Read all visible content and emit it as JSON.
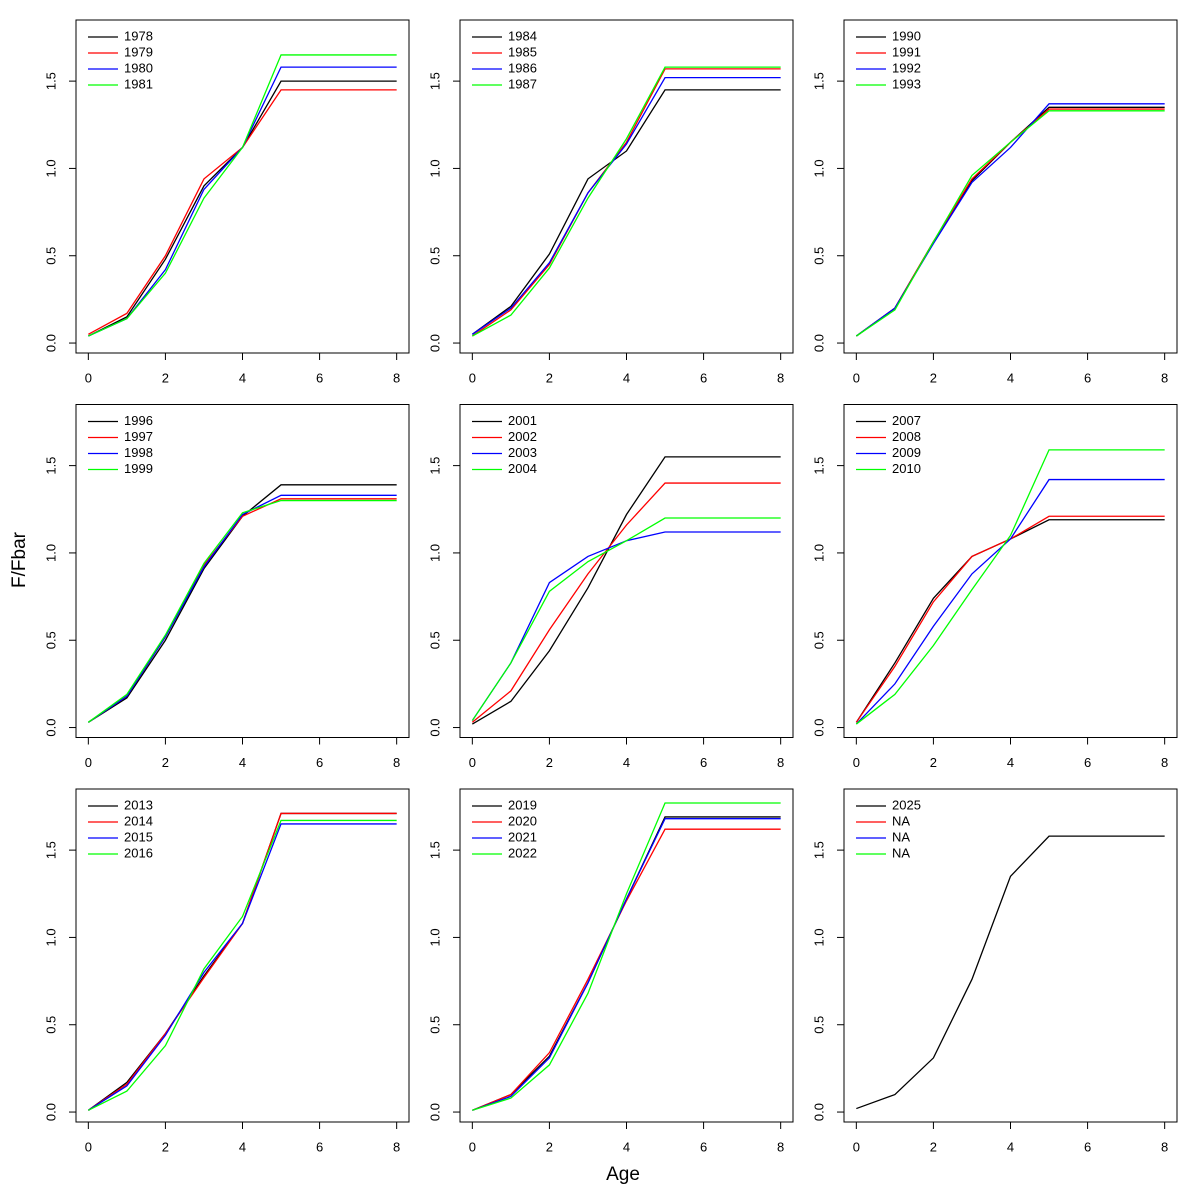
{
  "xlabel": "Age",
  "ylabel": "F/Fbar",
  "chart_data": [
    {
      "type": "line",
      "x": [
        0,
        1,
        2,
        3,
        4,
        5,
        6,
        7,
        8
      ],
      "xlim": [
        -0.32,
        8.32
      ],
      "ylim": [
        -0.057,
        1.85
      ],
      "xticks": [
        0,
        2,
        4,
        6,
        8
      ],
      "yticks": [
        {
          "value": 0,
          "label": "0.0"
        },
        0.5,
        {
          "value": 1,
          "label": "1.0"
        },
        1.5
      ],
      "series": [
        {
          "name": "1978",
          "color": "#000000",
          "values": [
            0.04,
            0.15,
            0.48,
            0.9,
            1.12,
            1.5,
            1.5,
            1.5,
            1.5
          ]
        },
        {
          "name": "1979",
          "color": "#ff0000",
          "values": [
            0.05,
            0.17,
            0.5,
            0.94,
            1.12,
            1.45,
            1.45,
            1.45,
            1.45
          ]
        },
        {
          "name": "1980",
          "color": "#0000ff",
          "values": [
            0.04,
            0.14,
            0.42,
            0.88,
            1.12,
            1.58,
            1.58,
            1.58,
            1.58
          ]
        },
        {
          "name": "1981",
          "color": "#00ff00",
          "values": [
            0.04,
            0.14,
            0.4,
            0.83,
            1.12,
            1.65,
            1.65,
            1.65,
            1.65
          ]
        }
      ]
    },
    {
      "type": "line",
      "x": [
        0,
        1,
        2,
        3,
        4,
        5,
        6,
        7,
        8
      ],
      "xlim": [
        -0.32,
        8.32
      ],
      "ylim": [
        -0.057,
        1.85
      ],
      "xticks": [
        0,
        2,
        4,
        6,
        8
      ],
      "yticks": [
        {
          "value": 0,
          "label": "0.0"
        },
        0.5,
        {
          "value": 1,
          "label": "1.0"
        },
        1.5
      ],
      "series": [
        {
          "name": "1984",
          "color": "#000000",
          "values": [
            0.05,
            0.21,
            0.51,
            0.94,
            1.1,
            1.45,
            1.45,
            1.45,
            1.45
          ]
        },
        {
          "name": "1985",
          "color": "#ff0000",
          "values": [
            0.04,
            0.19,
            0.45,
            0.86,
            1.15,
            1.57,
            1.57,
            1.57,
            1.57
          ]
        },
        {
          "name": "1986",
          "color": "#0000ff",
          "values": [
            0.05,
            0.2,
            0.46,
            0.86,
            1.14,
            1.52,
            1.52,
            1.52,
            1.52
          ]
        },
        {
          "name": "1987",
          "color": "#00ff00",
          "values": [
            0.04,
            0.16,
            0.43,
            0.83,
            1.17,
            1.58,
            1.58,
            1.58,
            1.58
          ]
        }
      ]
    },
    {
      "type": "line",
      "x": [
        0,
        1,
        2,
        3,
        4,
        5,
        6,
        7,
        8
      ],
      "xlim": [
        -0.32,
        8.32
      ],
      "ylim": [
        -0.057,
        1.85
      ],
      "xticks": [
        0,
        2,
        4,
        6,
        8
      ],
      "yticks": [
        {
          "value": 0,
          "label": "0.0"
        },
        0.5,
        {
          "value": 1,
          "label": "1.0"
        },
        1.5
      ],
      "series": [
        {
          "name": "1990",
          "color": "#000000",
          "values": [
            0.04,
            0.2,
            0.58,
            0.93,
            1.15,
            1.35,
            1.35,
            1.35,
            1.35
          ]
        },
        {
          "name": "1991",
          "color": "#ff0000",
          "values": [
            0.04,
            0.2,
            0.58,
            0.94,
            1.15,
            1.34,
            1.34,
            1.34,
            1.34
          ]
        },
        {
          "name": "1992",
          "color": "#0000ff",
          "values": [
            0.04,
            0.2,
            0.57,
            0.92,
            1.12,
            1.37,
            1.37,
            1.37,
            1.37
          ]
        },
        {
          "name": "1993",
          "color": "#00ff00",
          "values": [
            0.04,
            0.19,
            0.58,
            0.96,
            1.15,
            1.33,
            1.33,
            1.33,
            1.33
          ]
        }
      ]
    },
    {
      "type": "line",
      "x": [
        0,
        1,
        2,
        3,
        4,
        5,
        6,
        7,
        8
      ],
      "xlim": [
        -0.32,
        8.32
      ],
      "ylim": [
        -0.057,
        1.85
      ],
      "xticks": [
        0,
        2,
        4,
        6,
        8
      ],
      "yticks": [
        {
          "value": 0,
          "label": "0.0"
        },
        0.5,
        {
          "value": 1,
          "label": "1.0"
        },
        1.5
      ],
      "series": [
        {
          "name": "1996",
          "color": "#000000",
          "values": [
            0.03,
            0.17,
            0.5,
            0.91,
            1.21,
            1.39,
            1.39,
            1.39,
            1.39
          ]
        },
        {
          "name": "1997",
          "color": "#ff0000",
          "values": [
            0.03,
            0.18,
            0.52,
            0.93,
            1.21,
            1.31,
            1.31,
            1.31,
            1.31
          ]
        },
        {
          "name": "1998",
          "color": "#0000ff",
          "values": [
            0.03,
            0.18,
            0.52,
            0.92,
            1.22,
            1.33,
            1.33,
            1.33,
            1.33
          ]
        },
        {
          "name": "1999",
          "color": "#00ff00",
          "values": [
            0.03,
            0.19,
            0.53,
            0.94,
            1.23,
            1.3,
            1.3,
            1.3,
            1.3
          ]
        }
      ]
    },
    {
      "type": "line",
      "x": [
        0,
        1,
        2,
        3,
        4,
        5,
        6,
        7,
        8
      ],
      "xlim": [
        -0.32,
        8.32
      ],
      "ylim": [
        -0.057,
        1.85
      ],
      "xticks": [
        0,
        2,
        4,
        6,
        8
      ],
      "yticks": [
        {
          "value": 0,
          "label": "0.0"
        },
        0.5,
        {
          "value": 1,
          "label": "1.0"
        },
        1.5
      ],
      "series": [
        {
          "name": "2001",
          "color": "#000000",
          "values": [
            0.02,
            0.15,
            0.44,
            0.8,
            1.22,
            1.55,
            1.55,
            1.55,
            1.55
          ]
        },
        {
          "name": "2002",
          "color": "#ff0000",
          "values": [
            0.03,
            0.21,
            0.56,
            0.88,
            1.16,
            1.4,
            1.4,
            1.4,
            1.4
          ]
        },
        {
          "name": "2003",
          "color": "#0000ff",
          "values": [
            0.04,
            0.37,
            0.83,
            0.98,
            1.07,
            1.12,
            1.12,
            1.12,
            1.12
          ]
        },
        {
          "name": "2004",
          "color": "#00ff00",
          "values": [
            0.04,
            0.37,
            0.78,
            0.95,
            1.07,
            1.2,
            1.2,
            1.2,
            1.2
          ]
        }
      ]
    },
    {
      "type": "line",
      "x": [
        0,
        1,
        2,
        3,
        4,
        5,
        6,
        7,
        8
      ],
      "xlim": [
        -0.32,
        8.32
      ],
      "ylim": [
        -0.057,
        1.85
      ],
      "xticks": [
        0,
        2,
        4,
        6,
        8
      ],
      "yticks": [
        {
          "value": 0,
          "label": "0.0"
        },
        0.5,
        {
          "value": 1,
          "label": "1.0"
        },
        1.5
      ],
      "series": [
        {
          "name": "2007",
          "color": "#000000",
          "values": [
            0.03,
            0.37,
            0.74,
            0.98,
            1.08,
            1.19,
            1.19,
            1.19,
            1.19
          ]
        },
        {
          "name": "2008",
          "color": "#ff0000",
          "values": [
            0.03,
            0.35,
            0.72,
            0.98,
            1.08,
            1.21,
            1.21,
            1.21,
            1.21
          ]
        },
        {
          "name": "2009",
          "color": "#0000ff",
          "values": [
            0.02,
            0.25,
            0.58,
            0.88,
            1.08,
            1.42,
            1.42,
            1.42,
            1.42
          ]
        },
        {
          "name": "2010",
          "color": "#00ff00",
          "values": [
            0.02,
            0.19,
            0.47,
            0.79,
            1.1,
            1.59,
            1.59,
            1.59,
            1.59
          ]
        }
      ]
    },
    {
      "type": "line",
      "x": [
        0,
        1,
        2,
        3,
        4,
        5,
        6,
        7,
        8
      ],
      "xlim": [
        -0.32,
        8.32
      ],
      "ylim": [
        -0.057,
        1.85
      ],
      "xticks": [
        0,
        2,
        4,
        6,
        8
      ],
      "yticks": [
        {
          "value": 0,
          "label": "0.0"
        },
        0.5,
        {
          "value": 1,
          "label": "1.0"
        },
        1.5
      ],
      "series": [
        {
          "name": "2013",
          "color": "#000000",
          "values": [
            0.01,
            0.17,
            0.45,
            0.78,
            1.08,
            1.71,
            1.71,
            1.71,
            1.71
          ]
        },
        {
          "name": "2014",
          "color": "#ff0000",
          "values": [
            0.01,
            0.16,
            0.45,
            0.77,
            1.08,
            1.71,
            1.71,
            1.71,
            1.71
          ]
        },
        {
          "name": "2015",
          "color": "#0000ff",
          "values": [
            0.01,
            0.15,
            0.44,
            0.8,
            1.08,
            1.65,
            1.65,
            1.65,
            1.65
          ]
        },
        {
          "name": "2016",
          "color": "#00ff00",
          "values": [
            0.01,
            0.12,
            0.38,
            0.82,
            1.12,
            1.67,
            1.67,
            1.67,
            1.67
          ]
        }
      ]
    },
    {
      "type": "line",
      "x": [
        0,
        1,
        2,
        3,
        4,
        5,
        6,
        7,
        8
      ],
      "xlim": [
        -0.32,
        8.32
      ],
      "ylim": [
        -0.057,
        1.85
      ],
      "xticks": [
        0,
        2,
        4,
        6,
        8
      ],
      "yticks": [
        {
          "value": 0,
          "label": "0.0"
        },
        0.5,
        {
          "value": 1,
          "label": "1.0"
        },
        1.5
      ],
      "series": [
        {
          "name": "2019",
          "color": "#000000",
          "values": [
            0.01,
            0.1,
            0.32,
            0.74,
            1.22,
            1.69,
            1.69,
            1.69,
            1.69
          ]
        },
        {
          "name": "2020",
          "color": "#ff0000",
          "values": [
            0.01,
            0.1,
            0.34,
            0.76,
            1.21,
            1.62,
            1.62,
            1.62,
            1.62
          ]
        },
        {
          "name": "2021",
          "color": "#0000ff",
          "values": [
            0.01,
            0.09,
            0.31,
            0.74,
            1.22,
            1.68,
            1.68,
            1.68,
            1.68
          ]
        },
        {
          "name": "2022",
          "color": "#00ff00",
          "values": [
            0.01,
            0.08,
            0.27,
            0.68,
            1.25,
            1.77,
            1.77,
            1.77,
            1.77
          ]
        }
      ]
    },
    {
      "type": "line",
      "x": [
        0,
        1,
        2,
        3,
        4,
        5,
        6,
        7,
        8
      ],
      "xlim": [
        -0.32,
        8.32
      ],
      "ylim": [
        -0.057,
        1.85
      ],
      "xticks": [
        0,
        2,
        4,
        6,
        8
      ],
      "yticks": [
        {
          "value": 0,
          "label": "0.0"
        },
        0.5,
        {
          "value": 1,
          "label": "1.0"
        },
        1.5
      ],
      "series": [
        {
          "name": "2025",
          "color": "#000000",
          "values": [
            0.02,
            0.1,
            0.31,
            0.76,
            1.35,
            1.58,
            1.58,
            1.58,
            1.58
          ]
        },
        {
          "name": "NA",
          "color": "#ff0000",
          "values": [
            null,
            null,
            null,
            null,
            null,
            null,
            null,
            null,
            null
          ]
        },
        {
          "name": "NA",
          "color": "#0000ff",
          "values": [
            null,
            null,
            null,
            null,
            null,
            null,
            null,
            null,
            null
          ]
        },
        {
          "name": "NA",
          "color": "#00ff00",
          "values": [
            null,
            null,
            null,
            null,
            null,
            null,
            null,
            null,
            null
          ]
        }
      ]
    }
  ]
}
